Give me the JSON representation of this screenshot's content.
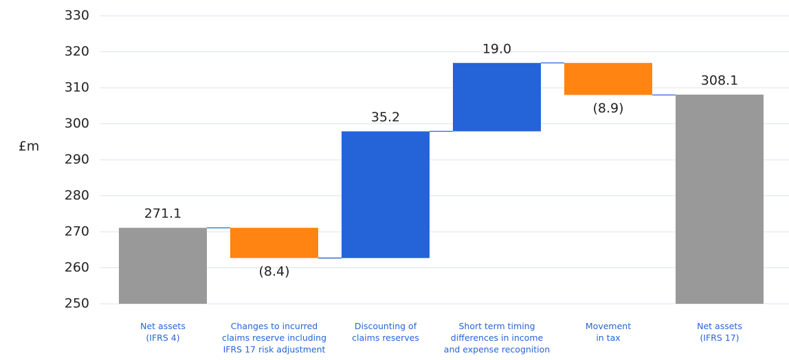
{
  "chart_data": {
    "type": "waterfall",
    "y_label": "£m",
    "categories": [
      "Net assets\n(IFRS 4)",
      "Changes to incurred\nclaims reserve including\nIFRS 17 risk adjustment",
      "Discounting of\nclaims reserves",
      "Short term timing\ndifferences in income\nand expense recognition",
      "Movement\nin tax",
      "Net assets\n(IFRS 17)"
    ],
    "values": [
      271.1,
      -8.4,
      35.2,
      19.0,
      -8.9,
      308.1
    ],
    "value_labels": [
      "271.1",
      "(8.4)",
      "35.2",
      "19.0",
      "(8.9)",
      "308.1"
    ],
    "colors": [
      "#999999",
      "#ff8412",
      "#2563d9",
      "#2563d9",
      "#ff8412",
      "#999999"
    ],
    "ylim": [
      250,
      330
    ],
    "yticks": [
      250,
      260,
      270,
      280,
      290,
      300,
      310,
      320,
      330
    ],
    "grid": true
  }
}
